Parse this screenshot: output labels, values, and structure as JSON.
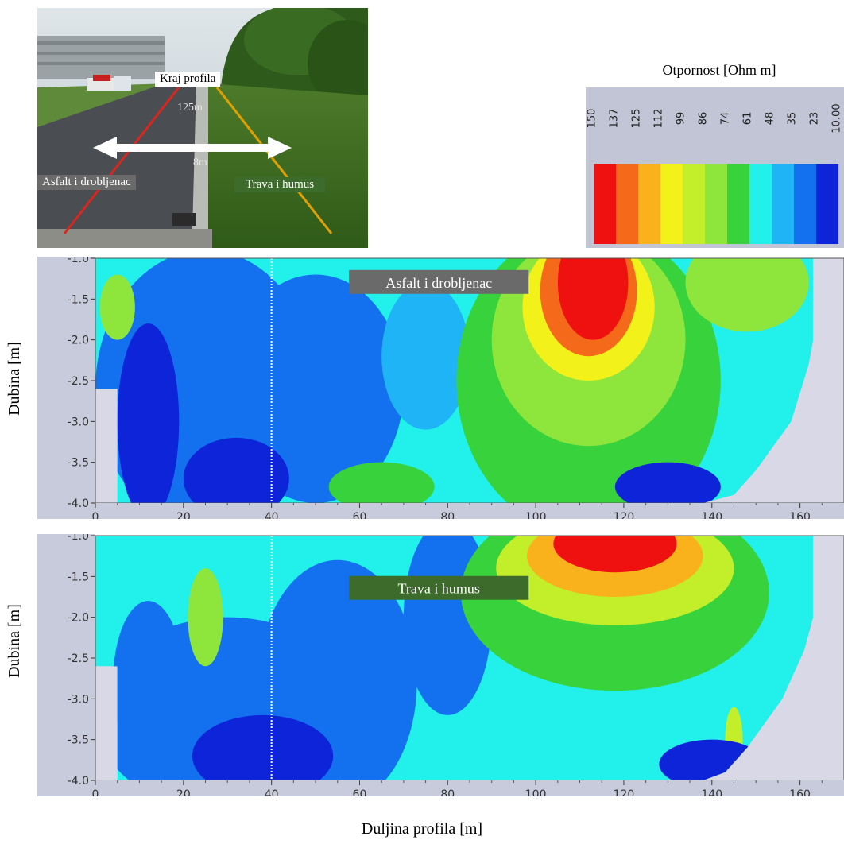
{
  "photo": {
    "end_label": "Kraj profila",
    "distance_label": "125m",
    "width_label": "8m",
    "left_surface_label": "Asfalt i drobljenac",
    "right_surface_label": "Trava i humus"
  },
  "legend": {
    "title": "Otpornost [Ohm m]",
    "ticks": [
      "150",
      "137",
      "125",
      "112",
      "99",
      "86",
      "74",
      "61",
      "48",
      "35",
      "23",
      "10.00"
    ],
    "colors": [
      "#ef1010",
      "#f56a1a",
      "#f9b21c",
      "#f2f21a",
      "#c2ee2a",
      "#8ee63c",
      "#38d33c",
      "#22f0ea",
      "#1eb4f5",
      "#1370ef",
      "#0d24d8"
    ]
  },
  "chart_data": [
    {
      "type": "heatmap",
      "title": "Asfalt i drobljenac",
      "xlabel": "Duljina profila [m]",
      "ylabel": "Dubina [m]",
      "xlim": [
        0,
        170
      ],
      "ylim": [
        -4.0,
        -1.0
      ],
      "x_ticks": [
        "0",
        "20",
        "40",
        "60",
        "80",
        "100",
        "120",
        "140",
        "160"
      ],
      "y_ticks": [
        "-1.0",
        "-1.5",
        "-2.0",
        "-2.5",
        "-3.0",
        "-3.5",
        "-4.0"
      ],
      "marker_x": 40,
      "colorbar_unit": "Ohm m",
      "high_resistivity_zone": {
        "x_range": [
          95,
          128
        ],
        "depth_range": [
          -1.0,
          -2.2
        ]
      }
    },
    {
      "type": "heatmap",
      "title": "Trava i humus",
      "xlabel": "Duljina profila [m]",
      "ylabel": "Dubina [m]",
      "xlim": [
        0,
        170
      ],
      "ylim": [
        -4.0,
        -1.0
      ],
      "x_ticks": [
        "0",
        "20",
        "40",
        "60",
        "80",
        "100",
        "120",
        "140",
        "160"
      ],
      "y_ticks": [
        "-1.0",
        "-1.5",
        "-2.0",
        "-2.5",
        "-3.0",
        "-3.5",
        "-4.0"
      ],
      "marker_x": 40,
      "colorbar_unit": "Ohm m",
      "high_resistivity_zone": {
        "x_range": [
          98,
          138
        ],
        "depth_range": [
          -1.0,
          -1.6
        ]
      }
    }
  ],
  "axis_titles": {
    "y1": "Dubina [m]",
    "y2": "Dubina [m]",
    "x": "Duljina profila [m]"
  }
}
